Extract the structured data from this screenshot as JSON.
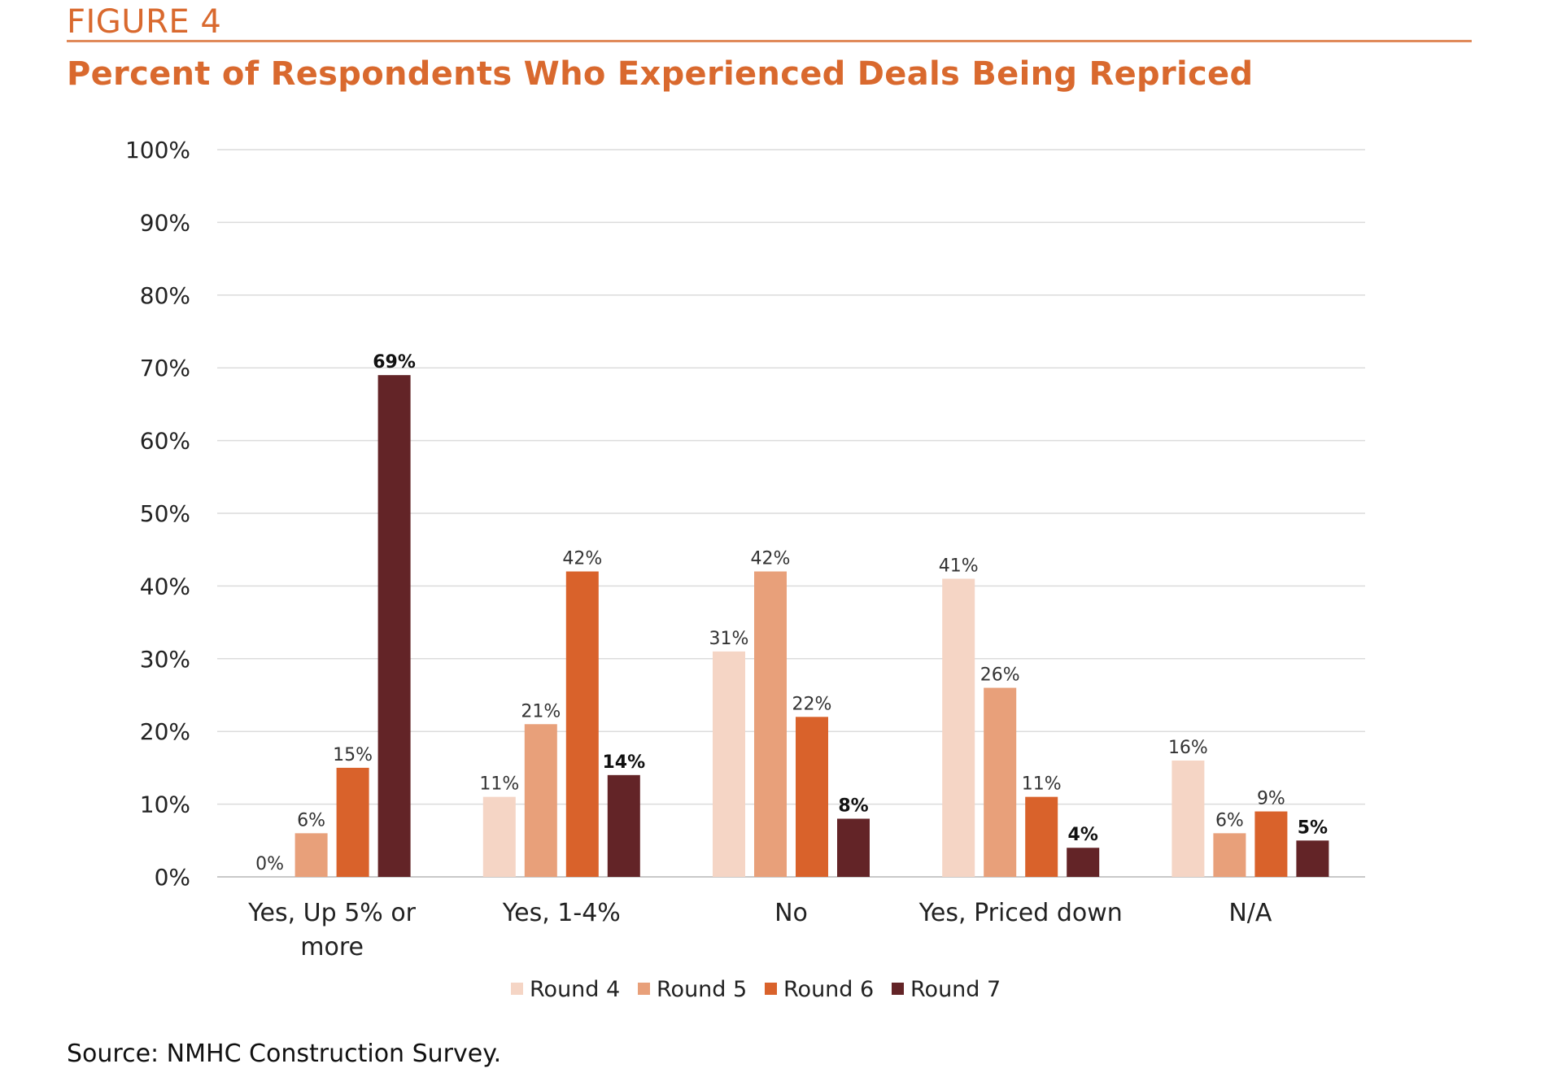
{
  "header": {
    "figure_label": "FIGURE 4",
    "title": "Percent of Respondents Who Experienced Deals Being Repriced"
  },
  "footer": {
    "source": "Source: NMHC Construction Survey."
  },
  "chart_data": {
    "type": "bar",
    "title": "Percent of Respondents Who Experienced Deals Being Repriced",
    "xlabel": "",
    "ylabel": "",
    "ylim": [
      0,
      100
    ],
    "y_ticks": [
      "0%",
      "10%",
      "20%",
      "30%",
      "40%",
      "50%",
      "60%",
      "70%",
      "80%",
      "90%",
      "100%"
    ],
    "grid": true,
    "legend_position": "bottom-center",
    "categories": [
      [
        "Yes, Up 5% or",
        "more"
      ],
      [
        "Yes, 1-4%"
      ],
      [
        "No"
      ],
      [
        "Yes, Priced down"
      ],
      [
        "N/A"
      ]
    ],
    "series": [
      {
        "name": "Round 4",
        "color": "#f5d5c5",
        "values": [
          0,
          11,
          31,
          41,
          16
        ],
        "labels": [
          "0%",
          "11%",
          "31%",
          "41%",
          "16%"
        ]
      },
      {
        "name": "Round 5",
        "color": "#e8a07a",
        "values": [
          6,
          21,
          42,
          26,
          6
        ],
        "labels": [
          "6%",
          "21%",
          "42%",
          "26%",
          "6%"
        ]
      },
      {
        "name": "Round 6",
        "color": "#d9622b",
        "values": [
          15,
          42,
          22,
          11,
          9
        ],
        "labels": [
          "15%",
          "42%",
          "22%",
          "11%",
          "9%"
        ]
      },
      {
        "name": "Round 7",
        "color": "#632427",
        "values": [
          69,
          14,
          8,
          4,
          5
        ],
        "labels": [
          "69%",
          "14%",
          "8%",
          "4%",
          "5%"
        ],
        "bold_labels": true
      }
    ]
  }
}
